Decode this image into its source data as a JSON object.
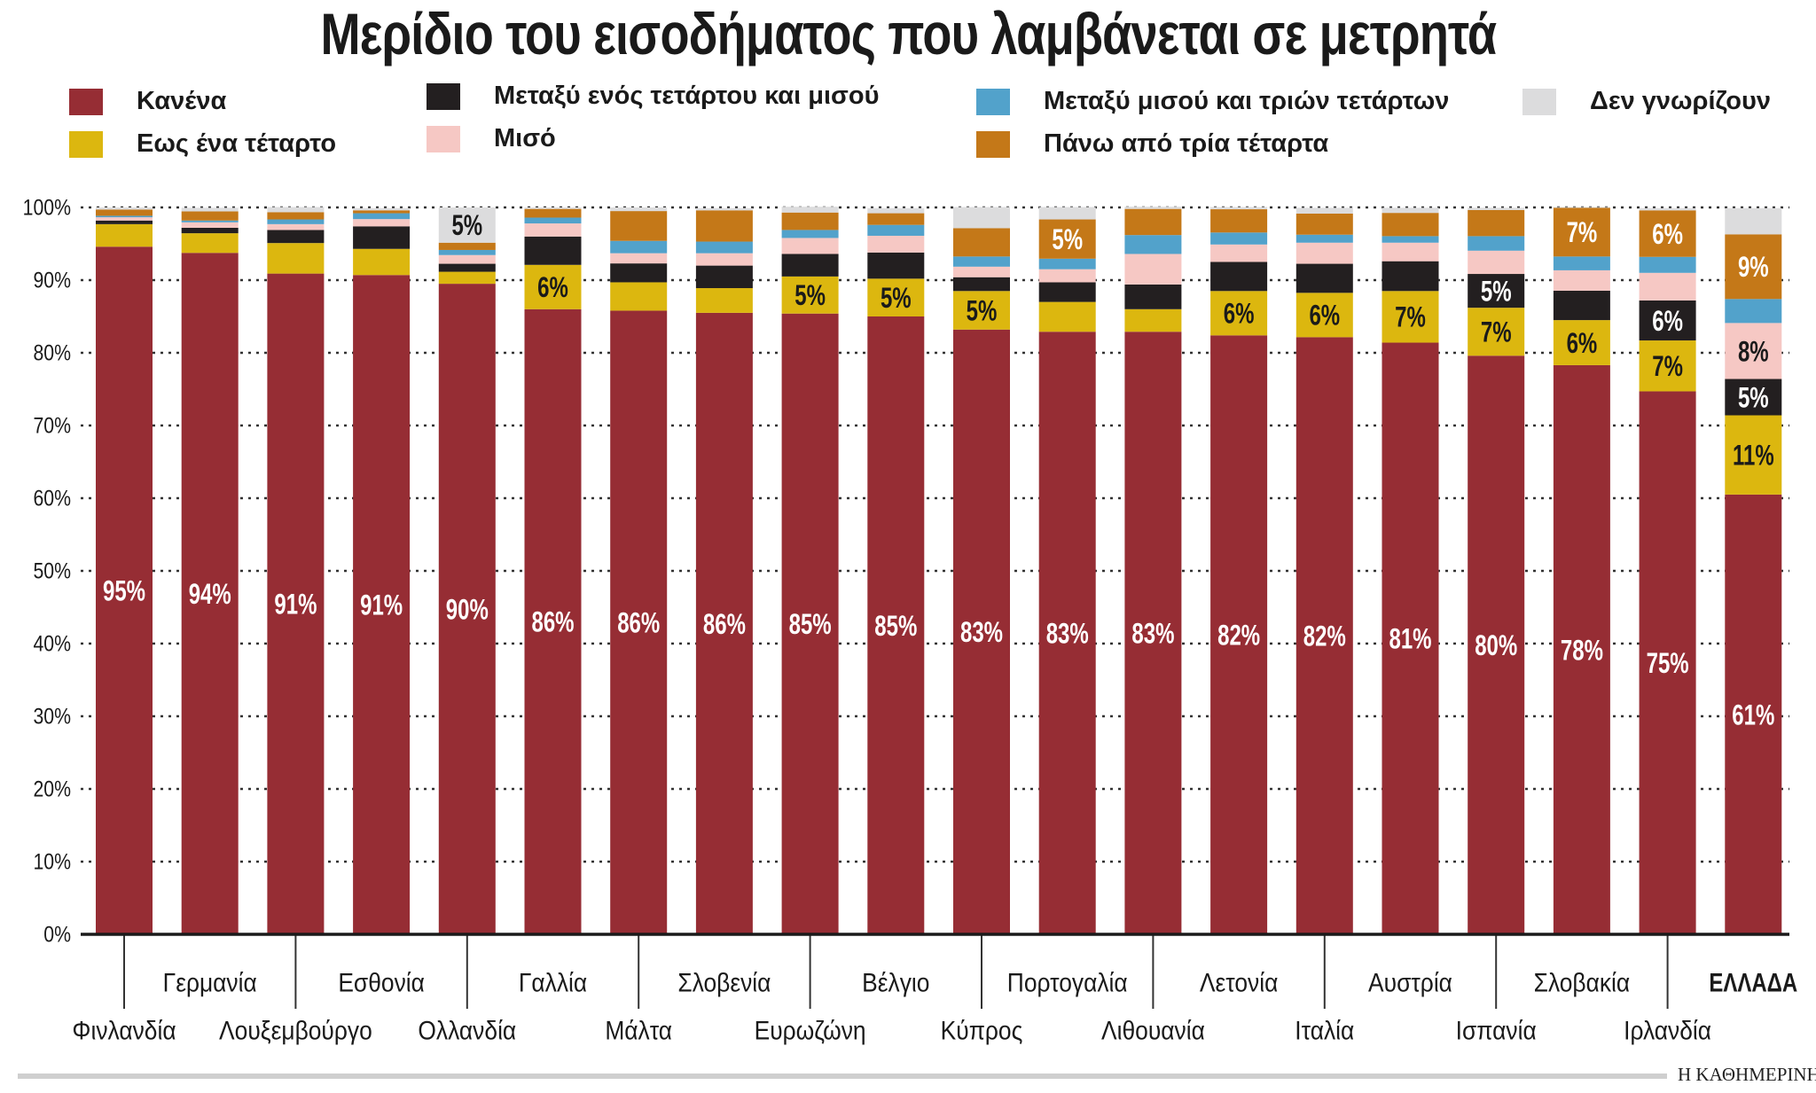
{
  "chart_data": {
    "type": "bar",
    "stacked": true,
    "title": "Μερίδιο του εισοδήματος που λαμβάνεται σε μετρητά",
    "xlabel": "",
    "ylabel": "",
    "ylim": [
      0,
      100
    ],
    "yticks": [
      "0%",
      "10%",
      "20%",
      "30%",
      "40%",
      "50%",
      "60%",
      "70%",
      "80%",
      "90%",
      "100%"
    ],
    "grid": true,
    "legend_position": "top",
    "categories": [
      "Φινλανδία",
      "Γερμανία",
      "Λουξεμβούργο",
      "Εσθονία",
      "Ολλανδία",
      "Γαλλία",
      "Μάλτα",
      "Σλοβενία",
      "Ευρωζώνη",
      "Βέλγιο",
      "Κύπρος",
      "Πορτογαλία",
      "Λιθουανία",
      "Λετονία",
      "Ιταλία",
      "Αυστρία",
      "Ισπανία",
      "Σλοβακία",
      "Ιρλανδία",
      "ΕΛΛΑΔΑ"
    ],
    "highlight_category": "ΕΛΛΑΔΑ",
    "series": [
      {
        "name": "Κανένα",
        "color": "#962d34",
        "values": [
          94.6,
          93.75,
          90.9,
          90.7,
          89.5,
          86.0,
          85.8,
          85.5,
          85.4,
          85.0,
          83.2,
          82.9,
          82.9,
          82.4,
          82.15,
          81.4,
          79.6,
          78.3,
          74.7,
          60.5
        ]
      },
      {
        "name": "Εως ένα τέταρτο",
        "color": "#dcb70f",
        "values": [
          3.1,
          2.7,
          4.2,
          3.6,
          1.65,
          6.1,
          3.9,
          3.4,
          5.1,
          5.2,
          5.3,
          4.1,
          3.1,
          6.1,
          6.1,
          7.1,
          6.6,
          6.2,
          7.0,
          10.9
        ]
      },
      {
        "name": "Μεταξύ ενός τετάρτου και μισού",
        "color": "#231f20",
        "values": [
          0.5,
          0.75,
          1.8,
          3.1,
          1.1,
          3.9,
          2.6,
          3.1,
          3.1,
          3.6,
          1.9,
          2.7,
          3.4,
          4.0,
          4.0,
          4.1,
          4.65,
          4.05,
          5.5,
          5.0
        ]
      },
      {
        "name": "Μισό",
        "color": "#f6c8c4",
        "values": [
          0.45,
          0.75,
          0.8,
          1.0,
          1.2,
          1.8,
          1.4,
          1.7,
          2.2,
          2.3,
          1.45,
          1.8,
          4.2,
          2.4,
          2.9,
          2.55,
          3.2,
          2.8,
          3.8,
          7.7
        ]
      },
      {
        "name": "Μεταξύ μισού και τριών τετάρτων",
        "color": "#52a2cb",
        "values": [
          0.2,
          0.25,
          0.65,
          0.8,
          0.7,
          0.8,
          1.7,
          1.6,
          1.1,
          1.5,
          1.4,
          1.45,
          2.6,
          1.65,
          1.1,
          0.9,
          2.0,
          1.9,
          2.2,
          3.3
        ]
      },
      {
        "name": "Πάνω από τρία τέταρτα",
        "color": "#c47818",
        "values": [
          0.85,
          1.25,
          1.0,
          0.4,
          1.0,
          1.2,
          4.1,
          4.3,
          2.4,
          1.6,
          3.9,
          5.4,
          3.6,
          3.2,
          2.9,
          3.2,
          3.6,
          6.7,
          6.4,
          8.9
        ]
      },
      {
        "name": "Δεν γνωρίζουν",
        "color": "#dcdcdd",
        "values": [
          0.3,
          0.5,
          0.7,
          0.3,
          4.85,
          0.2,
          0.5,
          0.3,
          0.8,
          0.7,
          2.9,
          1.7,
          0.3,
          0.3,
          0.8,
          0.7,
          0.3,
          0.1,
          0.3,
          3.6
        ]
      }
    ]
  },
  "footer": {
    "brand": "Η ΚΑΘΗΜΕΡΙΝΗ"
  }
}
